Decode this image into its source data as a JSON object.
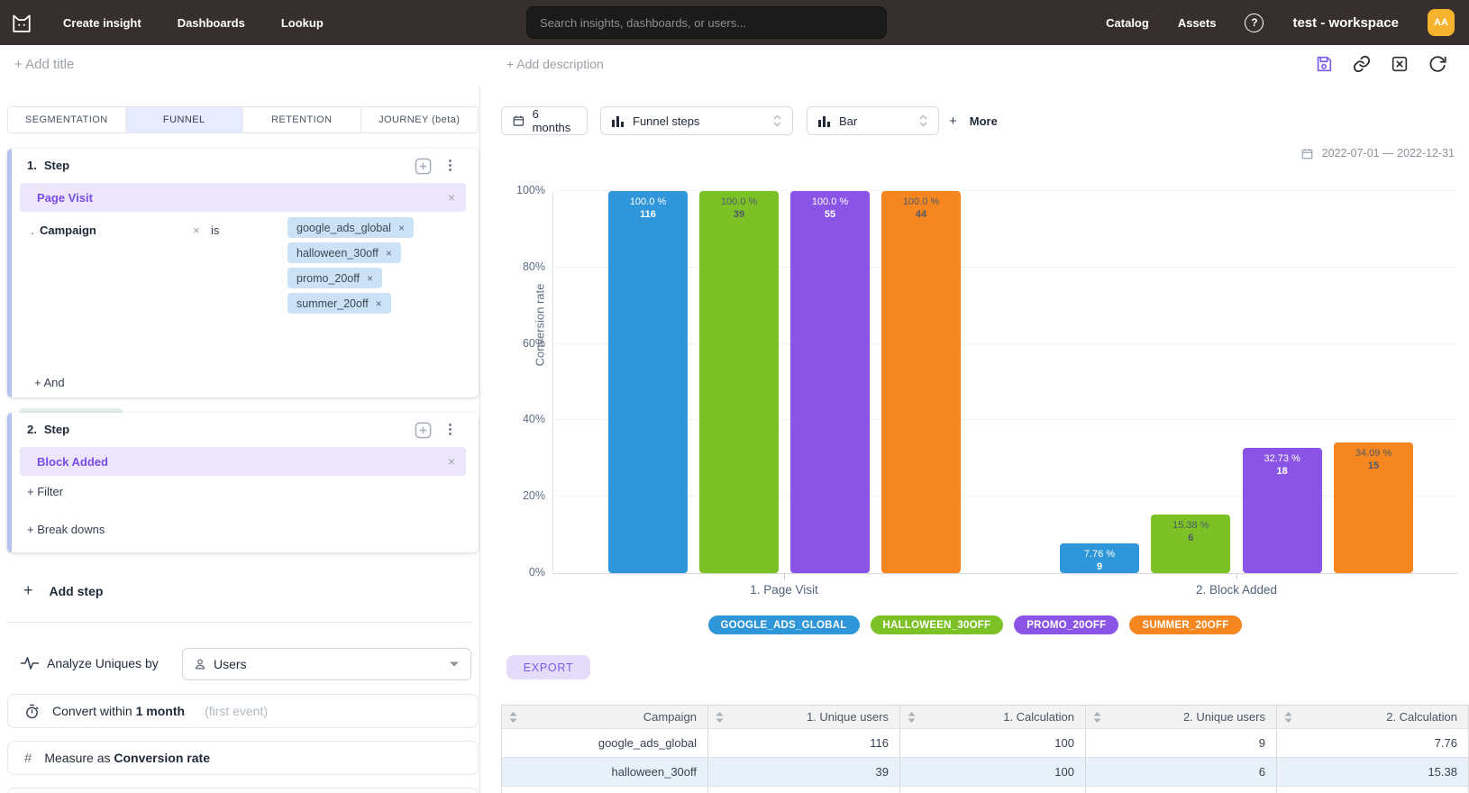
{
  "topnav": {
    "nav": [
      {
        "label": "Create insight"
      },
      {
        "label": "Dashboards"
      },
      {
        "label": "Lookup"
      }
    ],
    "search_placeholder": "Search insights, dashboards, or users...",
    "right_nav": [
      {
        "label": "Catalog"
      },
      {
        "label": "Assets"
      }
    ],
    "help_glyph": "?",
    "workspace": "test - workspace",
    "avatar_initials": "AA",
    "avatar_color": "#F6B32D"
  },
  "titlebar": {
    "add_title": "+ Add title",
    "add_description": "+ Add description"
  },
  "builder": {
    "tabs": [
      {
        "label": "SEGMENTATION",
        "active": false
      },
      {
        "label": "FUNNEL",
        "active": true
      },
      {
        "label": "RETENTION",
        "active": false
      },
      {
        "label": "JOURNEY (beta)",
        "active": false
      }
    ],
    "steps": [
      {
        "number": "1.",
        "title": "Step",
        "event": "Page Visit",
        "filter": {
          "name": "Campaign",
          "operator": "is",
          "values": [
            "google_ads_global",
            "halloween_30off",
            "promo_20off",
            "summer_20off"
          ]
        },
        "and_label": "+ And",
        "breakdown_label": "Campaign"
      },
      {
        "number": "2.",
        "title": "Step",
        "event": "Block Added",
        "filter_link": "+ Filter",
        "breakdowns_link": "+ Break downs"
      }
    ],
    "add_step_label": "Add step",
    "analyze": {
      "label": "Analyze Uniques by",
      "value": "Users"
    },
    "convert": {
      "prefix": "Convert within",
      "bold": "1 month",
      "hint": "(first event)"
    },
    "measure": {
      "prefix": "Measure as",
      "bold": "Conversion rate"
    }
  },
  "controls": {
    "date_button": "6 months",
    "display_select": "Funnel steps",
    "chart_select": "Bar",
    "more_label": "More",
    "date_range": "2022-07-01 — 2022-12-31"
  },
  "chart_data": {
    "type": "bar",
    "ylabel": "Conversion rate",
    "ylim": [
      0,
      100
    ],
    "yticks": [
      "0%",
      "20%",
      "40%",
      "60%",
      "80%",
      "100%"
    ],
    "grid": true,
    "legend_position": "bottom",
    "categories": [
      "1. Page Visit",
      "2. Block Added"
    ],
    "series": [
      {
        "name": "GOOGLE_ADS_GLOBAL",
        "color": "#2E96D9",
        "label_color": "#FFFFFF",
        "values": [
          {
            "pct": 100.0,
            "pct_label": "100.0 %",
            "count": 116
          },
          {
            "pct": 7.76,
            "pct_label": "7.76 %",
            "count": 9
          }
        ]
      },
      {
        "name": "HALLOWEEN_30OFF",
        "color": "#7CC226",
        "label_color": "#4E5B66",
        "values": [
          {
            "pct": 100.0,
            "pct_label": "100.0 %",
            "count": 39
          },
          {
            "pct": 15.38,
            "pct_label": "15.38 %",
            "count": 6
          }
        ]
      },
      {
        "name": "PROMO_20OFF",
        "color": "#8A55E6",
        "label_color": "#FFFFFF",
        "values": [
          {
            "pct": 100.0,
            "pct_label": "100.0 %",
            "count": 55
          },
          {
            "pct": 32.73,
            "pct_label": "32.73 %",
            "count": 18
          }
        ]
      },
      {
        "name": "SUMMER_20OFF",
        "color": "#F6861F",
        "label_color": "#4E5B66",
        "values": [
          {
            "pct": 100.0,
            "pct_label": "100.0 %",
            "count": 44
          },
          {
            "pct": 34.09,
            "pct_label": "34.09 %",
            "count": 15
          }
        ]
      }
    ]
  },
  "export_label": "EXPORT",
  "table": {
    "columns": [
      "Campaign",
      "1. Unique users",
      "1. Calculation",
      "2. Unique users",
      "2. Calculation"
    ],
    "rows": [
      [
        "google_ads_global",
        "116",
        "100",
        "9",
        "7.76"
      ],
      [
        "halloween_30off",
        "39",
        "100",
        "6",
        "15.38"
      ]
    ]
  },
  "colors": {
    "accent": "#7A5BEB"
  }
}
